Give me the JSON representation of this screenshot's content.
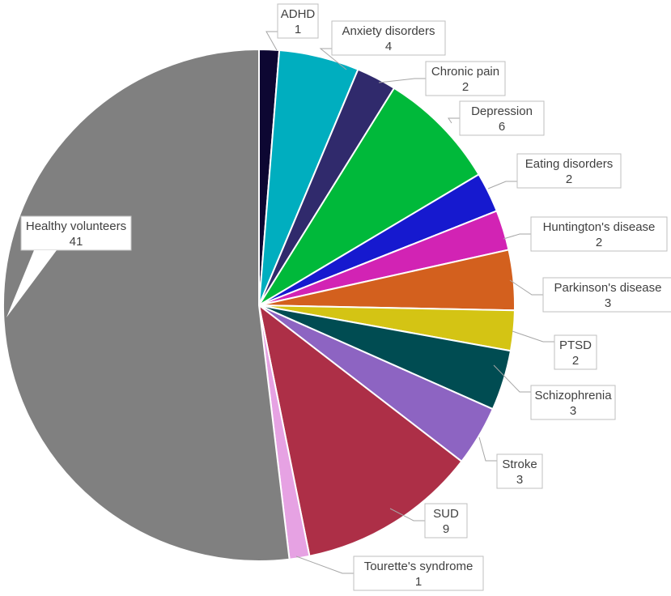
{
  "chart_data": {
    "type": "pie",
    "slices": [
      {
        "label": "ADHD",
        "value": 1,
        "color": "#0d0732"
      },
      {
        "label": "Anxiety disorders",
        "value": 4,
        "color": "#00aebf"
      },
      {
        "label": "Chronic pain",
        "value": 2,
        "color": "#302a6c"
      },
      {
        "label": "Depression",
        "value": 6,
        "color": "#00b93a"
      },
      {
        "label": "Eating disorders",
        "value": 2,
        "color": "#1619cf"
      },
      {
        "label": "Huntington's disease",
        "value": 2,
        "color": "#d223b4"
      },
      {
        "label": "Parkinson's disease",
        "value": 3,
        "color": "#d3601e"
      },
      {
        "label": "PTSD",
        "value": 2,
        "color": "#d4c414"
      },
      {
        "label": "Schizophrenia",
        "value": 3,
        "color": "#004c52"
      },
      {
        "label": "Stroke",
        "value": 3,
        "color": "#8d64c2"
      },
      {
        "label": "SUD",
        "value": 9,
        "color": "#ad2f47"
      },
      {
        "label": "Tourette's syndrome",
        "value": 1,
        "color": "#e6a2e3"
      },
      {
        "label": "Healthy volunteers",
        "value": 41,
        "color": "#808080"
      }
    ]
  }
}
